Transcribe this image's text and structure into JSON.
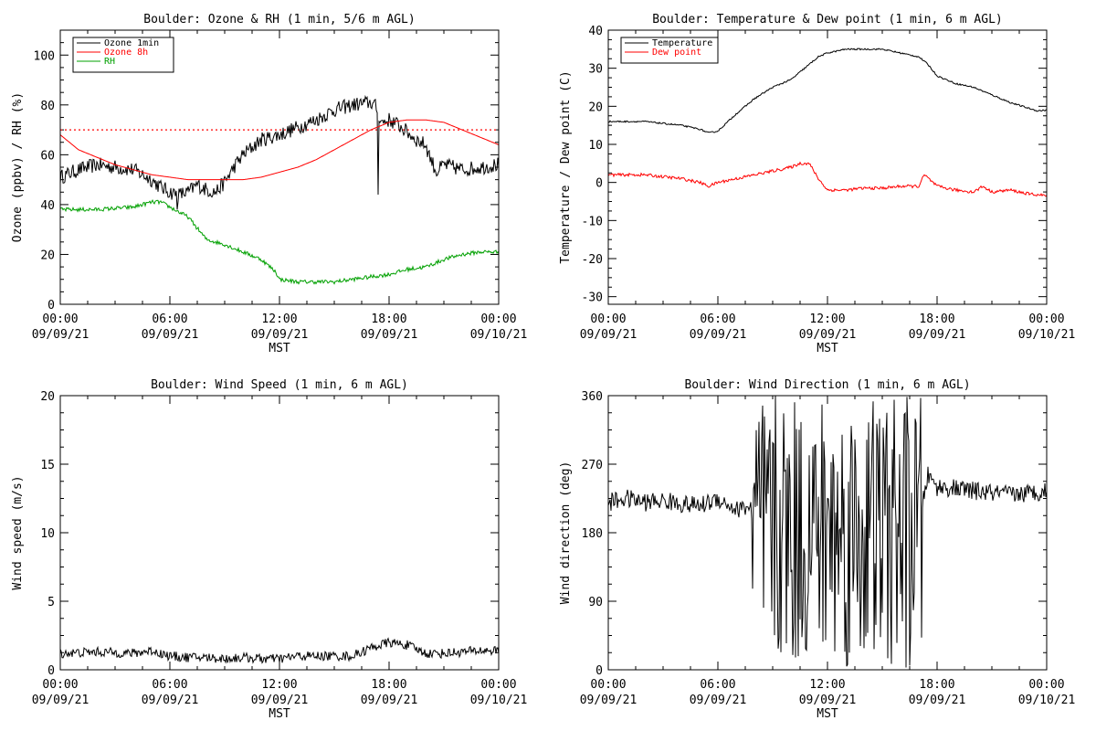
{
  "chart_data": [
    {
      "type": "line",
      "title": "Boulder: Ozone & RH (1 min, 5/6 m AGL)",
      "xlabel": "MST",
      "ylabel": "Ozone (ppbv) / RH (%)",
      "xlim": [
        "09/09/21 00:00",
        "09/10/21 00:00"
      ],
      "ylim": [
        0,
        110
      ],
      "yticks": [
        0,
        20,
        40,
        60,
        80,
        100
      ],
      "legend": "top-left",
      "reference_line": {
        "y": 70,
        "style": "dotted",
        "color": "#ff0000"
      },
      "series": [
        {
          "name": "Ozone 1min",
          "color": "#000000",
          "noise": 3,
          "points": [
            [
              0,
              51
            ],
            [
              1,
              54
            ],
            [
              2,
              56
            ],
            [
              3,
              55
            ],
            [
              4,
              54
            ],
            [
              5,
              50
            ],
            [
              5.5,
              47
            ],
            [
              6,
              45
            ],
            [
              6.5,
              44
            ],
            [
              7,
              45
            ],
            [
              7.5,
              48
            ],
            [
              8,
              46
            ],
            [
              8.5,
              45
            ],
            [
              9,
              49
            ],
            [
              9.5,
              55
            ],
            [
              10,
              60
            ],
            [
              11,
              66
            ],
            [
              12,
              68
            ],
            [
              13,
              71
            ],
            [
              14,
              74
            ],
            [
              15,
              78
            ],
            [
              16,
              80
            ],
            [
              17,
              81
            ],
            [
              17.3,
              79
            ],
            [
              17.6,
              73
            ],
            [
              18,
              74
            ],
            [
              18.5,
              72
            ],
            [
              19,
              69
            ],
            [
              19.5,
              66
            ],
            [
              20,
              64
            ],
            [
              20.3,
              58
            ],
            [
              20.6,
              53
            ],
            [
              21,
              56
            ],
            [
              22,
              54
            ],
            [
              23,
              55
            ],
            [
              24,
              56
            ]
          ],
          "spikes": [
            [
              17.4,
              44
            ],
            [
              6.4,
              38
            ]
          ]
        },
        {
          "name": "Ozone 8h",
          "color": "#ff0000",
          "noise": 0,
          "points": [
            [
              0,
              68
            ],
            [
              1,
              62
            ],
            [
              2,
              59
            ],
            [
              3,
              56
            ],
            [
              4,
              54
            ],
            [
              5,
              52
            ],
            [
              6,
              51
            ],
            [
              7,
              50
            ],
            [
              8,
              50
            ],
            [
              9,
              50
            ],
            [
              10,
              50
            ],
            [
              11,
              51
            ],
            [
              12,
              53
            ],
            [
              13,
              55
            ],
            [
              14,
              58
            ],
            [
              15,
              62
            ],
            [
              16,
              66
            ],
            [
              17,
              70
            ],
            [
              18,
              73
            ],
            [
              19,
              74
            ],
            [
              20,
              74
            ],
            [
              21,
              73
            ],
            [
              22,
              70
            ],
            [
              23,
              67
            ],
            [
              24,
              64
            ]
          ]
        },
        {
          "name": "RH",
          "color": "#00a000",
          "noise": 0.8,
          "points": [
            [
              0,
              38
            ],
            [
              2,
              38
            ],
            [
              4,
              39
            ],
            [
              5,
              41
            ],
            [
              5.5,
              41
            ],
            [
              6,
              39
            ],
            [
              7,
              35
            ],
            [
              8,
              26
            ],
            [
              9,
              24
            ],
            [
              10,
              21
            ],
            [
              11,
              18
            ],
            [
              11.8,
              13
            ],
            [
              12,
              10
            ],
            [
              13,
              9
            ],
            [
              14,
              9
            ],
            [
              15,
              9
            ],
            [
              16,
              10
            ],
            [
              17,
              11
            ],
            [
              18,
              12
            ],
            [
              19,
              14
            ],
            [
              20,
              15
            ],
            [
              20.7,
              17
            ],
            [
              21,
              18
            ],
            [
              22,
              20
            ],
            [
              23,
              21
            ],
            [
              24,
              21
            ]
          ]
        }
      ]
    },
    {
      "type": "line",
      "title": "Boulder: Temperature & Dew point (1 min, 6 m AGL)",
      "xlabel": "MST",
      "ylabel": "Temperature / Dew point (C)",
      "xlim": [
        "09/09/21 00:00",
        "09/10/21 00:00"
      ],
      "ylim": [
        -32,
        40
      ],
      "yticks": [
        -30,
        -20,
        -10,
        0,
        10,
        20,
        30,
        40
      ],
      "legend": "top-left",
      "series": [
        {
          "name": "Temperature",
          "color": "#000000",
          "noise": 0.2,
          "points": [
            [
              0,
              16
            ],
            [
              2,
              16
            ],
            [
              4,
              15
            ],
            [
              5,
              14
            ],
            [
              5.5,
              13
            ],
            [
              6,
              13.5
            ],
            [
              7,
              18
            ],
            [
              8,
              22
            ],
            [
              9,
              25
            ],
            [
              10,
              27
            ],
            [
              11,
              31
            ],
            [
              11.5,
              33
            ],
            [
              12,
              34
            ],
            [
              13,
              35
            ],
            [
              14,
              35
            ],
            [
              15,
              35
            ],
            [
              16,
              34
            ],
            [
              17,
              33
            ],
            [
              17.5,
              31
            ],
            [
              18,
              28
            ],
            [
              19,
              26
            ],
            [
              20,
              25
            ],
            [
              21,
              23
            ],
            [
              22,
              21
            ],
            [
              23,
              19.5
            ],
            [
              23.5,
              18.8
            ],
            [
              24,
              19
            ]
          ]
        },
        {
          "name": "Dew point",
          "color": "#ff0000",
          "noise": 0.4,
          "points": [
            [
              0,
              2
            ],
            [
              2,
              2
            ],
            [
              3,
              1.5
            ],
            [
              4,
              1
            ],
            [
              5,
              0
            ],
            [
              5.5,
              -1
            ],
            [
              6,
              0
            ],
            [
              7,
              1
            ],
            [
              8,
              2
            ],
            [
              9,
              3
            ],
            [
              10,
              4
            ],
            [
              10.5,
              5
            ],
            [
              11,
              5
            ],
            [
              11.5,
              1
            ],
            [
              12,
              -2
            ],
            [
              13,
              -2
            ],
            [
              14,
              -1.5
            ],
            [
              15,
              -1.5
            ],
            [
              16,
              -1
            ],
            [
              17,
              -1
            ],
            [
              17.3,
              2
            ],
            [
              18,
              -1
            ],
            [
              19,
              -2
            ],
            [
              20,
              -2.5
            ],
            [
              20.5,
              -1
            ],
            [
              21,
              -2.5
            ],
            [
              22,
              -2
            ],
            [
              23,
              -3
            ],
            [
              24,
              -3.5
            ]
          ]
        }
      ]
    },
    {
      "type": "line",
      "title": "Boulder: Wind Speed (1 min, 6 m AGL)",
      "xlabel": "MST",
      "ylabel": "Wind speed (m/s)",
      "xlim": [
        "09/09/21 00:00",
        "09/10/21 00:00"
      ],
      "ylim": [
        0,
        20
      ],
      "yticks": [
        0,
        5,
        10,
        15,
        20
      ],
      "series": [
        {
          "color": "#000000",
          "noise": 0.35,
          "points": [
            [
              0,
              1.2
            ],
            [
              2,
              1.3
            ],
            [
              4,
              1.2
            ],
            [
              5,
              1.4
            ],
            [
              6,
              1.0
            ],
            [
              7,
              0.9
            ],
            [
              8,
              0.9
            ],
            [
              9,
              0.8
            ],
            [
              10,
              0.9
            ],
            [
              11,
              0.8
            ],
            [
              12,
              0.8
            ],
            [
              13,
              1.0
            ],
            [
              14,
              1.0
            ],
            [
              15,
              1.0
            ],
            [
              16,
              1.0
            ],
            [
              17,
              1.6
            ],
            [
              18,
              2.0
            ],
            [
              19,
              1.8
            ],
            [
              20,
              1.2
            ],
            [
              21,
              1.2
            ],
            [
              22,
              1.3
            ],
            [
              23,
              1.4
            ],
            [
              24,
              1.4
            ]
          ]
        }
      ]
    },
    {
      "type": "line",
      "title": "Boulder: Wind Direction (1 min, 6 m AGL)",
      "xlabel": "MST",
      "ylabel": "Wind direction (deg)",
      "xlim": [
        "09/09/21 00:00",
        "09/10/21 00:00"
      ],
      "ylim": [
        0,
        360
      ],
      "yticks": [
        0,
        90,
        180,
        270,
        360
      ],
      "series": [
        {
          "color": "#000000",
          "noise": 12,
          "variable": {
            "from": 7.8,
            "to": 17.2
          },
          "points": [
            [
              0,
              220
            ],
            [
              1,
              225
            ],
            [
              2,
              220
            ],
            [
              3,
              222
            ],
            [
              4,
              218
            ],
            [
              5,
              215
            ],
            [
              6,
              225
            ],
            [
              7,
              210
            ],
            [
              7.8,
              215
            ],
            [
              17.2,
              220
            ],
            [
              17.5,
              255
            ],
            [
              18,
              240
            ],
            [
              19,
              238
            ],
            [
              20,
              235
            ],
            [
              21,
              232
            ],
            [
              22,
              230
            ],
            [
              23,
              232
            ],
            [
              24,
              235
            ]
          ]
        }
      ]
    }
  ],
  "xticks": [
    {
      "hour": 0,
      "time": "00:00",
      "date": "09/09/21"
    },
    {
      "hour": 6,
      "time": "06:00",
      "date": "09/09/21"
    },
    {
      "hour": 12,
      "time": "12:00",
      "date": "09/09/21"
    },
    {
      "hour": 18,
      "time": "18:00",
      "date": "09/09/21"
    },
    {
      "hour": 24,
      "time": "00:00",
      "date": "09/10/21"
    }
  ]
}
